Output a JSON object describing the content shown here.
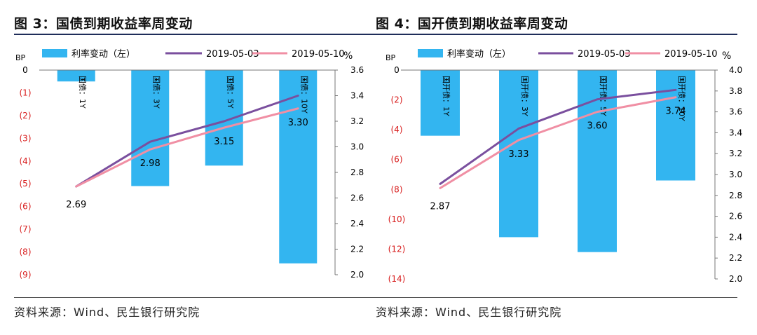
{
  "chart_data": [
    {
      "type": "bar",
      "title": "图 3：国债到期收益率周变动",
      "source": "资料来源：Wind、民生银行研究院",
      "left_axis_unit": "BP",
      "right_axis_unit": "%",
      "categories": [
        "国债：1Y",
        "国债：3Y",
        "国债：5Y",
        "国债：10Y"
      ],
      "left_ylim": [
        -9,
        0
      ],
      "left_ticks": [
        "0",
        "(1)",
        "(2)",
        "(3)",
        "(4)",
        "(5)",
        "(6)",
        "(7)",
        "(8)",
        "(9)"
      ],
      "right_ylim": [
        2.0,
        3.6
      ],
      "right_ticks": [
        "3.6",
        "3.4",
        "3.2",
        "3.0",
        "2.8",
        "2.6",
        "2.4",
        "2.2",
        "2.0"
      ],
      "series": [
        {
          "name": "利率变动（左）",
          "kind": "bar",
          "axis": "left",
          "color": "#33b5f0",
          "values": [
            -0.5,
            -5.1,
            -4.2,
            -8.5
          ]
        },
        {
          "name": "2019-05-03",
          "kind": "line",
          "axis": "right",
          "color": "#7a4f9e",
          "values": [
            2.69,
            3.04,
            3.2,
            3.4
          ]
        },
        {
          "name": "2019-05-10",
          "kind": "line",
          "axis": "right",
          "color": "#f08fa4",
          "values": [
            2.69,
            2.98,
            3.15,
            3.3
          ]
        }
      ],
      "data_labels": [
        "2.69",
        "2.98",
        "3.15",
        "3.30"
      ],
      "legend_position": "top"
    },
    {
      "type": "bar",
      "title": "图 4：国开债到期收益率周变动",
      "source": "资料来源：Wind、民生银行研究院",
      "left_axis_unit": "BP",
      "right_axis_unit": "%",
      "categories": [
        "国开债：1Y",
        "国开债：3Y",
        "国开债：5Y",
        "国开债：10Y"
      ],
      "left_ylim": [
        -14,
        0
      ],
      "left_ticks": [
        "0",
        "(2)",
        "(4)",
        "(6)",
        "(8)",
        "(10)",
        "(12)",
        "(14)"
      ],
      "right_ylim": [
        2.0,
        4.0
      ],
      "right_ticks": [
        "4.0",
        "3.8",
        "3.6",
        "3.4",
        "3.2",
        "3.0",
        "2.8",
        "2.6",
        "2.4",
        "2.2",
        "2.0"
      ],
      "series": [
        {
          "name": "利率变动（左）",
          "kind": "bar",
          "axis": "left",
          "color": "#33b5f0",
          "values": [
            -4.4,
            -11.2,
            -12.2,
            -7.4
          ]
        },
        {
          "name": "2019-05-03",
          "kind": "line",
          "axis": "right",
          "color": "#7a4f9e",
          "values": [
            2.91,
            3.44,
            3.72,
            3.81
          ]
        },
        {
          "name": "2019-05-10",
          "kind": "line",
          "axis": "right",
          "color": "#f08fa4",
          "values": [
            2.87,
            3.33,
            3.6,
            3.74
          ]
        }
      ],
      "data_labels": [
        "2.87",
        "3.33",
        "3.60",
        "3.74"
      ],
      "legend_position": "top"
    }
  ]
}
